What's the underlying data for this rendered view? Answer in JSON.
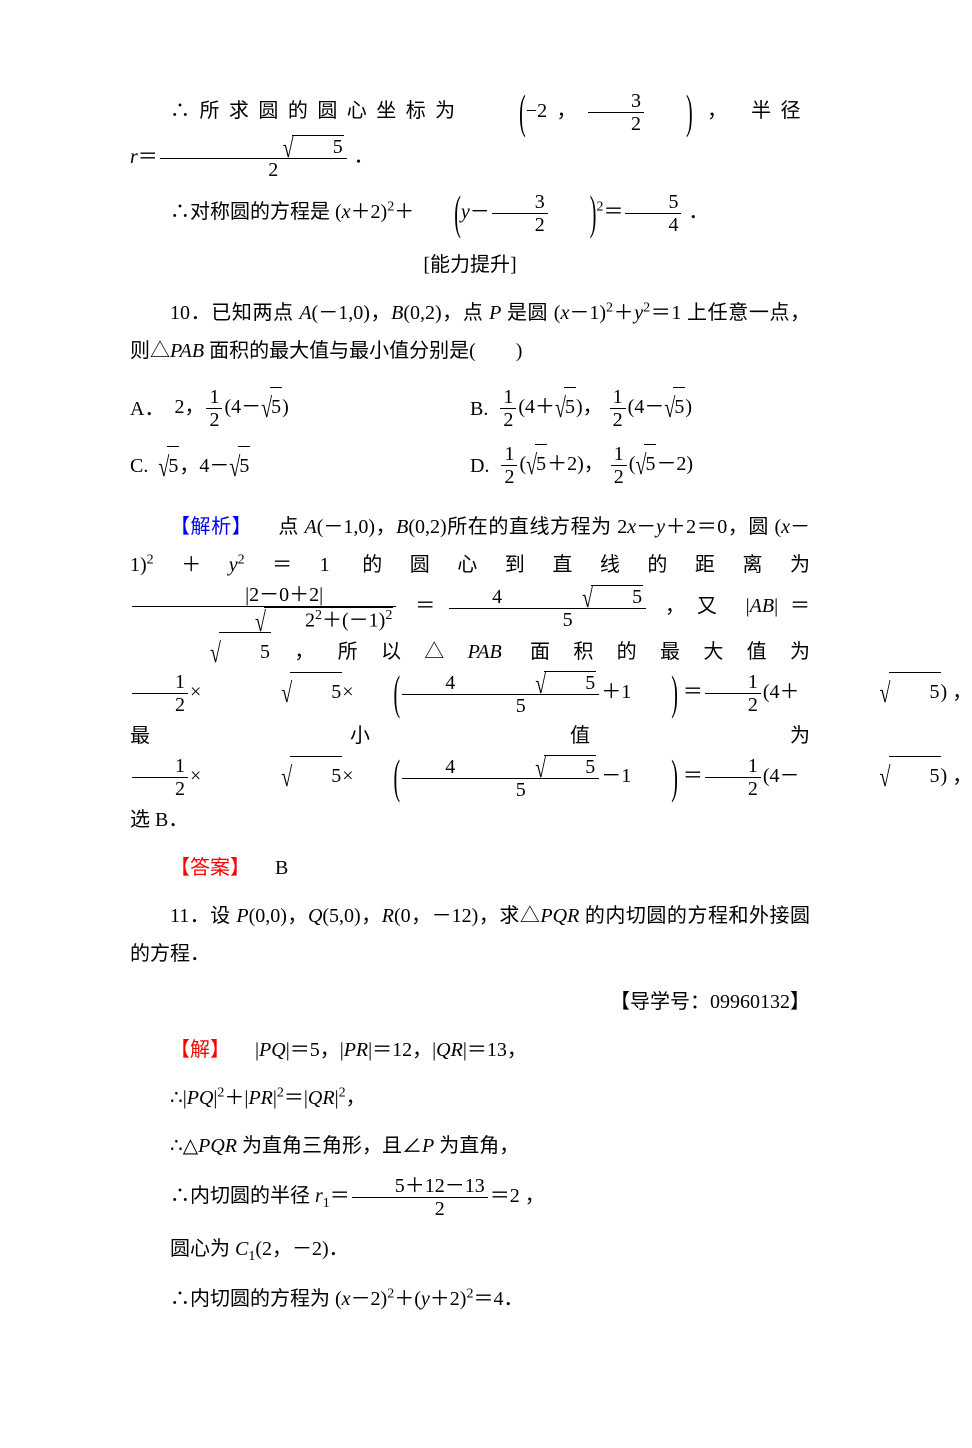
{
  "colors": {
    "text": "#000000",
    "background": "#ffffff",
    "analysis_label": "#0000ff",
    "answer_label": "#ff0000",
    "solution_label": "#ff0000"
  },
  "typography": {
    "base_font_family": "SimSun",
    "math_font_family": "Times New Roman",
    "base_size_pt": 15,
    "line_height": 1.9
  },
  "top_block": {
    "line1_prefix": "∴所求圆的圆心坐标为",
    "center_point": "（−2，3/2）",
    "line1_mid": "， 半径 ",
    "radius_var": "r",
    "radius_val": "= √5 / 2",
    "line1_suffix": "．",
    "line2_prefix": "∴对称圆的方程是",
    "sym_eq": "(x＋2)² ＋ (y − 3/2)² = 5/4",
    "line2_suffix": "．"
  },
  "section_label": "[能力提升]",
  "q10": {
    "number": "10．",
    "stem": "已知两点 A(−1,0)，B(0,2)，点 P 是圆 (x−1)²＋y²＝1 上任意一点，则△PAB 面积的最大值与最小值分别是(　　)",
    "options": {
      "A": {
        "lbl": "A．",
        "text": "2， ½(4−√5)"
      },
      "B": {
        "lbl": "B.",
        "text": "½(4＋√5)， ½(4−√5)"
      },
      "C": {
        "lbl": "C.",
        "text": "√5， 4−√5"
      },
      "D": {
        "lbl": "D.",
        "text": "½(√5＋2)， ½(√5−2)"
      }
    },
    "analysis_label": "【解析】",
    "analysis_body": "　点 A(−1,0)，B(0,2)所在的直线方程为 2x−y＋2＝0，圆(x−1)²＋y²＝1 的圆心到直线的距离为 |2−0＋2| / √(2²＋(−1)²) = 4√5 / 5，又|AB|=√5，所以△PAB 面积的最大值为 ½×√5×(4√5/5＋1)=½(4＋√5)，最小值为 ½×√5×(4√5/5−1)=½(4−√5)，选 B．",
    "answer_label": "【答案】",
    "answer_value": "B"
  },
  "q11": {
    "number": "11．",
    "stem": "设 P(0,0)，Q(5,0)，R(0，−12)，求△PQR 的内切圆的方程和外接圆的方程．",
    "guide": "【导学号：09960132】",
    "solution_label": "【解】",
    "lines": {
      "l1": "|PQ|＝5，|PR|＝12，|QR|＝13，",
      "l2": "∴|PQ|²＋|PR|²＝|QR|²，",
      "l3": "∴△PQR 为直角三角形，且∠P 为直角，",
      "l4_prefix": "∴内切圆的半径 ",
      "l4_var": "r₁",
      "l4_eq": "= (5＋12−13)/2 = 2",
      "l4_suffix": "，",
      "l5": "圆心为 C₁(2，−2)．",
      "l6": "∴内切圆的方程为 (x−2)²＋(y＋2)²＝4．"
    }
  }
}
